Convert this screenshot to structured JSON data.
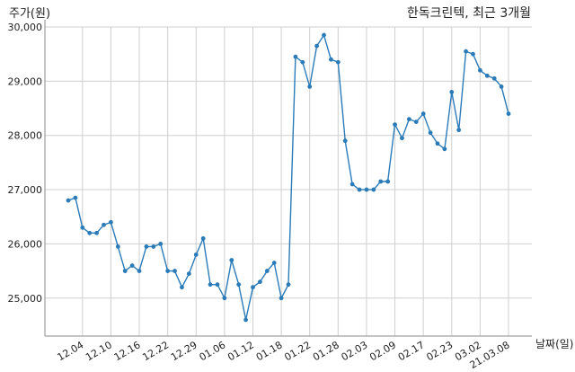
{
  "chart_data": {
    "type": "line",
    "title": "한독크린텍, 최근 3개월",
    "ylabel": "주가(원)",
    "xlabel": "날짜(일)",
    "ylim": [
      24300,
      30000
    ],
    "y_ticks": [
      25000,
      26000,
      27000,
      28000,
      29000,
      30000
    ],
    "y_tick_labels": [
      "25,000",
      "26,000",
      "27,000",
      "28,000",
      "29,000",
      "30,000"
    ],
    "x_ticks": [
      {
        "at": "12.04",
        "label": "12.04"
      },
      {
        "at": "12.10",
        "label": "12.10"
      },
      {
        "at": "12.16",
        "label": "12.16"
      },
      {
        "at": "12.22",
        "label": "12.22"
      },
      {
        "at": "12.29",
        "label": "12.29"
      },
      {
        "at": "01.06",
        "label": "01.06"
      },
      {
        "at": "01.12",
        "label": "01.12"
      },
      {
        "at": "01.18",
        "label": "01.18"
      },
      {
        "at": "01.22",
        "label": "01.22"
      },
      {
        "at": "01.28",
        "label": "01.28"
      },
      {
        "at": "02.03",
        "label": "02.03"
      },
      {
        "at": "02.09",
        "label": "02.09"
      },
      {
        "at": "02.17",
        "label": "02.17"
      },
      {
        "at": "02.23",
        "label": "02.23"
      },
      {
        "at": "03.02",
        "label": "03.02"
      },
      {
        "at": "03.08",
        "label": "21.03.08"
      }
    ],
    "grid": true,
    "line_color": "#2b7bb9",
    "x": [
      "12.02",
      "12.03",
      "12.04",
      "12.07",
      "12.08",
      "12.09",
      "12.10",
      "12.11",
      "12.14",
      "12.15",
      "12.16",
      "12.17",
      "12.18",
      "12.21",
      "12.22",
      "12.23",
      "12.24",
      "12.28",
      "12.29",
      "12.30",
      "01.04",
      "01.05",
      "01.06",
      "01.07",
      "01.08",
      "01.11",
      "01.12",
      "01.13",
      "01.14",
      "01.15",
      "01.18",
      "01.19",
      "01.20",
      "01.21",
      "01.22",
      "01.25",
      "01.26",
      "01.27",
      "01.28",
      "01.29",
      "02.01",
      "02.02",
      "02.03",
      "02.04",
      "02.05",
      "02.08",
      "02.09",
      "02.10",
      "02.15",
      "02.16",
      "02.17",
      "02.18",
      "02.19",
      "02.22",
      "02.23",
      "02.24",
      "02.25",
      "02.26",
      "03.02",
      "03.03",
      "03.04",
      "03.05",
      "03.08"
    ],
    "values": [
      26800,
      26850,
      26300,
      26200,
      26200,
      26350,
      26400,
      25950,
      25500,
      25600,
      25500,
      25950,
      25950,
      26000,
      25500,
      25500,
      25200,
      25450,
      25800,
      26100,
      25250,
      25250,
      25000,
      25700,
      25250,
      24600,
      25200,
      25300,
      25500,
      25650,
      25000,
      25250,
      29450,
      29350,
      28900,
      29650,
      29850,
      29400,
      29350,
      27900,
      27100,
      27000,
      27000,
      27000,
      27150,
      27150,
      28200,
      27950,
      28300,
      28250,
      28400,
      28050,
      27850,
      27750,
      28800,
      28100,
      29550,
      29500,
      29200,
      29100,
      29050,
      28900,
      28400
    ]
  }
}
